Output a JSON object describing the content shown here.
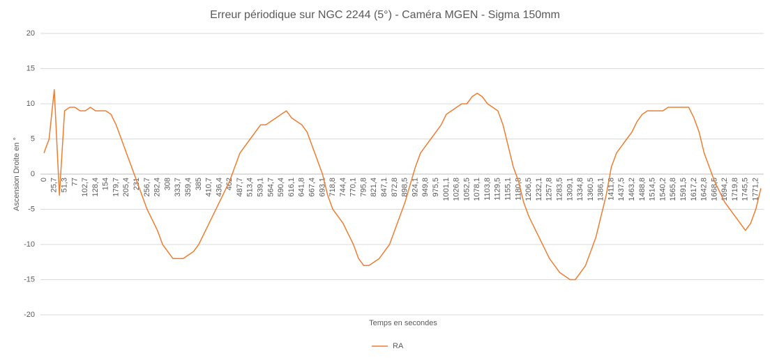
{
  "chart_data": {
    "type": "line",
    "title": "Erreur périodique sur NGC 2244 (5°) - Caméra MGEN - Sigma 150mm",
    "x_label": "Temps en secondes",
    "y_label": "Ascension Droite en °",
    "categories": [
      "0",
      null,
      "25,7",
      null,
      "51,3",
      null,
      "77",
      null,
      "102,7",
      null,
      "128,4",
      null,
      "154",
      null,
      "179,7",
      null,
      "205,4",
      null,
      "231",
      null,
      "256,7",
      null,
      "282,4",
      null,
      "308",
      null,
      "333,7",
      null,
      "359,4",
      null,
      "385",
      null,
      "410,7",
      null,
      "436,4",
      null,
      "462",
      null,
      "487,7",
      null,
      "513,4",
      null,
      "539,1",
      null,
      "564,7",
      null,
      "590,4",
      null,
      "616,1",
      null,
      "641,8",
      null,
      "667,4",
      null,
      "693,1",
      null,
      "718,8",
      null,
      "744,4",
      null,
      "770,1",
      null,
      "795,8",
      null,
      "821,4",
      null,
      "847,1",
      null,
      "872,8",
      null,
      "898,5",
      null,
      "924,1",
      null,
      "949,8",
      null,
      "975,5",
      null,
      "1001,1",
      null,
      "1026,8",
      null,
      "1052,5",
      null,
      "1078,1",
      null,
      "1103,8",
      null,
      "1129,5",
      null,
      "1155,1",
      null,
      "1180,8",
      null,
      "1206,5",
      null,
      "1232,1",
      null,
      "1257,8",
      null,
      "1283,5",
      null,
      "1309,1",
      null,
      "1334,8",
      null,
      "1360,5",
      null,
      "1386,1",
      null,
      "1411,8",
      null,
      "1437,5",
      null,
      "1463,2",
      null,
      "1488,8",
      null,
      "1514,5",
      null,
      "1540,2",
      null,
      "1565,8",
      null,
      "1591,5",
      null,
      "1617,2",
      null,
      "1642,8",
      null,
      "1668,5",
      null,
      "1694,2",
      null,
      "1719,8",
      null,
      "1745,5",
      null,
      "1771,2",
      null
    ],
    "series": [
      {
        "name": "RA",
        "color": "#ed7d31",
        "values": [
          3,
          5,
          12,
          -3,
          9,
          9.5,
          9.5,
          9,
          9,
          9.5,
          9,
          9,
          9,
          8.5,
          7,
          5,
          3,
          1,
          -1,
          -3,
          -5,
          -6.5,
          -8,
          -10,
          -11,
          -12,
          -12,
          -12,
          -11.5,
          -11,
          -10,
          -8.5,
          -7,
          -5.5,
          -4,
          -2.5,
          -1,
          1,
          3,
          4,
          5,
          6,
          7,
          7,
          7.5,
          8,
          8.5,
          9,
          8,
          7.5,
          7,
          6,
          4,
          2,
          0,
          -3,
          -5,
          -6,
          -7,
          -8.5,
          -10,
          -12,
          -13,
          -13,
          -12.5,
          -12,
          -11,
          -10,
          -8,
          -6,
          -4,
          -1.5,
          1,
          3,
          4,
          5,
          6,
          7,
          8.5,
          9,
          9.5,
          10,
          10,
          11,
          11.5,
          11,
          10,
          9.5,
          9,
          7,
          4,
          1,
          -1,
          -4,
          -6,
          -7.5,
          -9,
          -10.5,
          -12,
          -13,
          -14,
          -14.5,
          -15,
          -15,
          -14,
          -13,
          -11,
          -9,
          -6,
          -3,
          1,
          3,
          4,
          5,
          6,
          7.5,
          8.5,
          9,
          9,
          9,
          9,
          9.5,
          9.5,
          9.5,
          9.5,
          9.5,
          8,
          6,
          3,
          1,
          -1,
          -2.5,
          -4,
          -5,
          -6,
          -7,
          -8,
          -7,
          -5,
          -2
        ]
      }
    ],
    "ylim": [
      -20,
      20
    ],
    "yticks": [
      -20,
      -15,
      -10,
      -5,
      0,
      5,
      10,
      15,
      20
    ],
    "grid": true,
    "legend": "bottom"
  }
}
